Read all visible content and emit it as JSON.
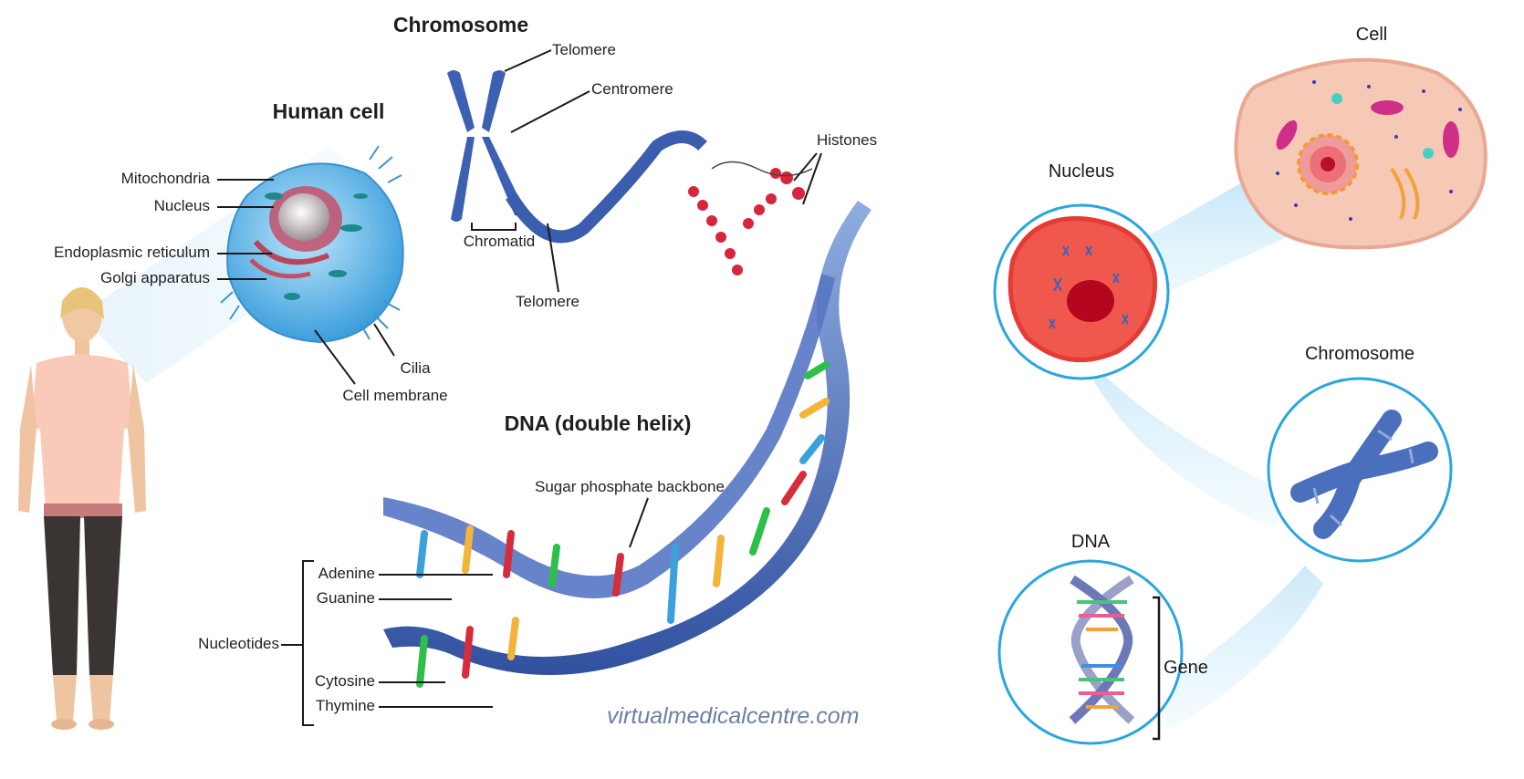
{
  "left_diagram": {
    "titles": {
      "chromosome": "Chromosome",
      "human_cell": "Human cell",
      "dna": "DNA (double helix)"
    },
    "labels": {
      "telomere_top": "Telomere",
      "centromere": "Centromere",
      "histones": "Histones",
      "mitochondria": "Mitochondria",
      "nucleus": "Nucleus",
      "endoplasmic_reticulum": "Endoplasmic reticulum",
      "golgi_apparatus": "Golgi apparatus",
      "chromatid": "Chromatid",
      "telomere_bottom": "Telomere",
      "cilia": "Cilia",
      "cell_membrane": "Cell membrane",
      "sugar_phosphate_backbone": "Sugar phosphate backbone",
      "adenine": "Adenine",
      "guanine": "Guanine",
      "nucleotides": "Nucleotides",
      "cytosine": "Cytosine",
      "thymine": "Thymine"
    },
    "watermark": "virtualmedicalcentre.com"
  },
  "right_diagram": {
    "labels": {
      "cell": "Cell",
      "nucleus": "Nucleus",
      "chromosome": "Chromosome",
      "dna": "DNA",
      "gene": "Gene"
    }
  },
  "colors": {
    "cell_blue": "#5fb3e6",
    "chromosome_blue": "#3f63b5",
    "histone_red": "#d9283c",
    "circle_outline": "#2aa6df",
    "nucleus_red": "#f0574d",
    "cell_pink": "#f6c6b4"
  }
}
